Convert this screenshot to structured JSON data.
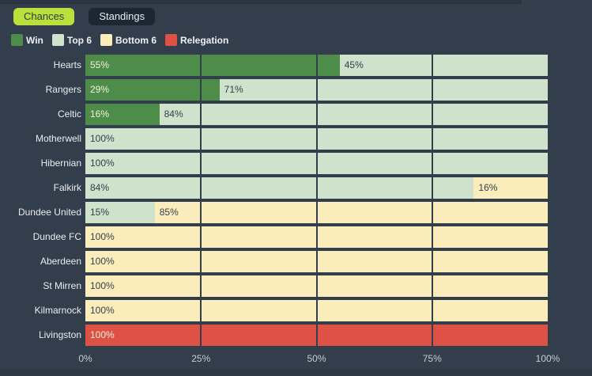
{
  "window": {
    "background": "#333e4d",
    "top_strip_color": "#2b3541",
    "bottom_strip_color": "#2d3843"
  },
  "tabs": [
    {
      "label": "Chances",
      "active": true
    },
    {
      "label": "Standings",
      "active": false
    }
  ],
  "tab_colors": {
    "active_bg": "#b9e13b",
    "active_text": "#2d3a47",
    "inactive_bg": "#1b2732",
    "inactive_text": "#e9eef2"
  },
  "legend": [
    {
      "label": "Win",
      "color": "#4e8c4a"
    },
    {
      "label": "Top 6",
      "color": "#cfe2cb"
    },
    {
      "label": "Bottom 6",
      "color": "#faedbb"
    },
    {
      "label": "Relegation",
      "color": "#dd5244"
    }
  ],
  "text_colors": {
    "on_dark_segment": "#f5f1de",
    "on_light_segment": "#333e4d"
  },
  "chart_data": {
    "type": "bar",
    "orientation": "horizontal",
    "stacked": true,
    "title": "",
    "xlabel": "",
    "ylabel": "",
    "xlim": [
      0,
      100
    ],
    "x_ticks": [
      "0%",
      "25%",
      "50%",
      "75%",
      "100%"
    ],
    "x_tick_values": [
      0,
      25,
      50,
      75,
      100
    ],
    "gridline_values": [
      25,
      50,
      75
    ],
    "grid": true,
    "legend_position": "top-left",
    "categories": [
      "Hearts",
      "Rangers",
      "Celtic",
      "Motherwell",
      "Hibernian",
      "Falkirk",
      "Dundee United",
      "Dundee FC",
      "Aberdeen",
      "St Mirren",
      "Kilmarnock",
      "Livingston"
    ],
    "rows": [
      {
        "team": "Hearts",
        "segments": [
          {
            "series": "Win",
            "value": 55,
            "label": "55%"
          },
          {
            "series": "Top 6",
            "value": 45,
            "label": "45%"
          }
        ]
      },
      {
        "team": "Rangers",
        "segments": [
          {
            "series": "Win",
            "value": 29,
            "label": "29%"
          },
          {
            "series": "Top 6",
            "value": 71,
            "label": "71%"
          }
        ]
      },
      {
        "team": "Celtic",
        "segments": [
          {
            "series": "Win",
            "value": 16,
            "label": "16%"
          },
          {
            "series": "Top 6",
            "value": 84,
            "label": "84%"
          }
        ]
      },
      {
        "team": "Motherwell",
        "segments": [
          {
            "series": "Top 6",
            "value": 100,
            "label": "100%"
          }
        ]
      },
      {
        "team": "Hibernian",
        "segments": [
          {
            "series": "Top 6",
            "value": 100,
            "label": "100%"
          }
        ]
      },
      {
        "team": "Falkirk",
        "segments": [
          {
            "series": "Top 6",
            "value": 84,
            "label": "84%"
          },
          {
            "series": "Bottom 6",
            "value": 16,
            "label": "16%"
          }
        ]
      },
      {
        "team": "Dundee United",
        "segments": [
          {
            "series": "Top 6",
            "value": 15,
            "label": "15%"
          },
          {
            "series": "Bottom 6",
            "value": 85,
            "label": "85%"
          }
        ]
      },
      {
        "team": "Dundee FC",
        "segments": [
          {
            "series": "Bottom 6",
            "value": 100,
            "label": "100%"
          }
        ]
      },
      {
        "team": "Aberdeen",
        "segments": [
          {
            "series": "Bottom 6",
            "value": 100,
            "label": "100%"
          }
        ]
      },
      {
        "team": "St Mirren",
        "segments": [
          {
            "series": "Bottom 6",
            "value": 100,
            "label": "100%"
          }
        ]
      },
      {
        "team": "Kilmarnock",
        "segments": [
          {
            "series": "Bottom 6",
            "value": 100,
            "label": "100%"
          }
        ]
      },
      {
        "team": "Livingston",
        "segments": [
          {
            "series": "Relegation",
            "value": 100,
            "label": "100%"
          }
        ]
      }
    ]
  }
}
